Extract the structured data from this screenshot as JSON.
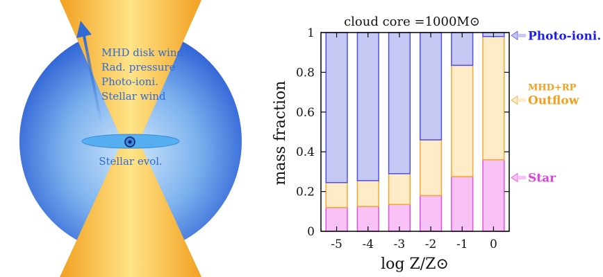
{
  "diagram": {
    "mechanisms": [
      "MHD disk wind",
      "Rad. pressure",
      "Photo-ioni.",
      "Stellar wind"
    ],
    "disk_label": "Stellar evol.",
    "colors": {
      "sphere_outer": "#2f63d6",
      "sphere_inner": "#cfe6fb",
      "cone_outer": "#f2a020",
      "cone_inner": "#ffe488",
      "text": "#2f6bd3",
      "disk": "#55aef0"
    }
  },
  "chart_data": {
    "type": "bar",
    "stacked": true,
    "title": "cloud core =1000M⊙",
    "xlabel": "log Z/Z⊙",
    "ylabel": "mass fraction",
    "categories": [
      "-5",
      "-4",
      "-3",
      "-2",
      "-1",
      "0"
    ],
    "ylim": [
      0,
      1
    ],
    "yticks": [
      "0",
      "0.2",
      "0.4",
      "0.6",
      "0.8",
      "1"
    ],
    "grid": false,
    "series": [
      {
        "key": "star",
        "values": [
          0.12,
          0.125,
          0.135,
          0.18,
          0.275,
          0.36
        ],
        "fill": "#f8c2f6",
        "stroke": "#e050e0"
      },
      {
        "key": "outflow",
        "values": [
          0.125,
          0.13,
          0.155,
          0.28,
          0.56,
          0.62
        ],
        "fill": "#feecc8",
        "stroke": "#f4a632"
      },
      {
        "key": "photo",
        "values": [
          0.755,
          0.745,
          0.71,
          0.54,
          0.165,
          0.02
        ],
        "fill": "#c6c8f4",
        "stroke": "#4d4fe4"
      }
    ],
    "annotations": [
      {
        "key": "photo",
        "lines": [
          "Photo-ioni."
        ],
        "color": "#1c1ee4",
        "at": 0.985
      },
      {
        "key": "outflow",
        "lines": [
          "MHD+RP",
          "Outflow"
        ],
        "color": "#f0a020",
        "at": 0.66
      },
      {
        "key": "star",
        "lines": [
          "Star"
        ],
        "color": "#e040e0",
        "at": 0.27
      }
    ]
  }
}
